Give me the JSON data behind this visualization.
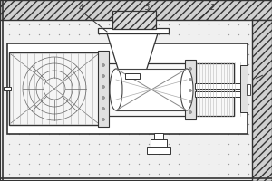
{
  "bg_color": "#f0f0f0",
  "hatch_fc": "#d8d8d8",
  "device_fc": "#ffffff",
  "line_color": "#333333",
  "dot_color": "#aaaaaa",
  "fig_width": 3.0,
  "fig_height": 2.0,
  "dpi": 100,
  "label_4": "4",
  "label_5": "5",
  "label_2": "2"
}
